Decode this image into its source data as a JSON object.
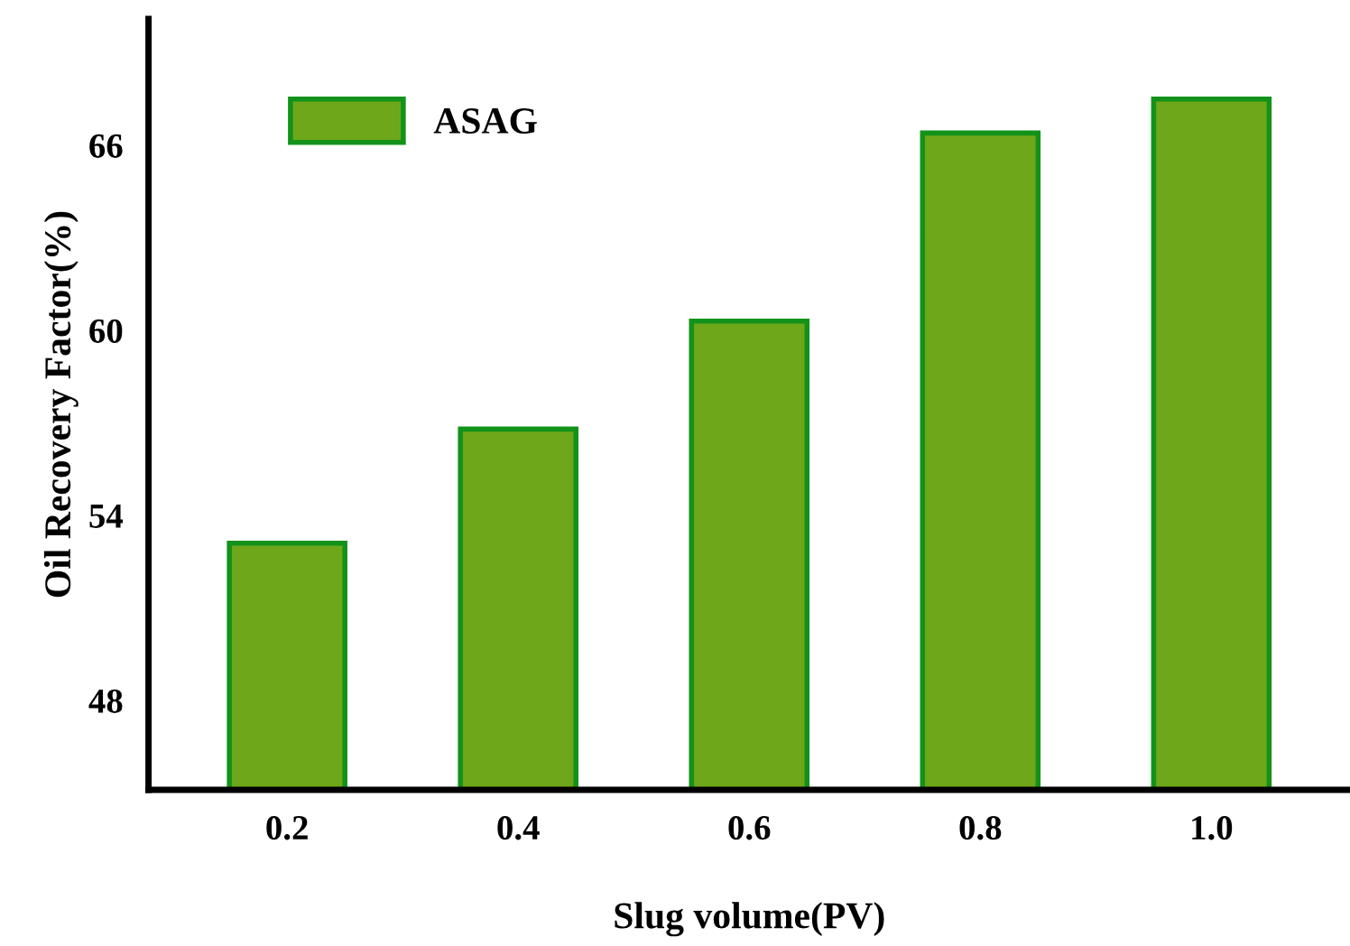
{
  "chart_data": {
    "type": "bar",
    "xlabel": "Slug volume(PV)",
    "ylabel": "Oil Recovery Factor(%)",
    "categories": [
      "0.2",
      "0.4",
      "0.6",
      "0.8",
      "1.0"
    ],
    "series": [
      {
        "name": "ASAG",
        "color": "#6ea81a",
        "values": [
          53.1,
          56.8,
          60.3,
          66.4,
          67.5
        ]
      }
    ],
    "ylim": [
      45.1,
      70.1
    ],
    "yticks": [
      48,
      54,
      60,
      66
    ],
    "grid": false,
    "legend": "top left"
  }
}
